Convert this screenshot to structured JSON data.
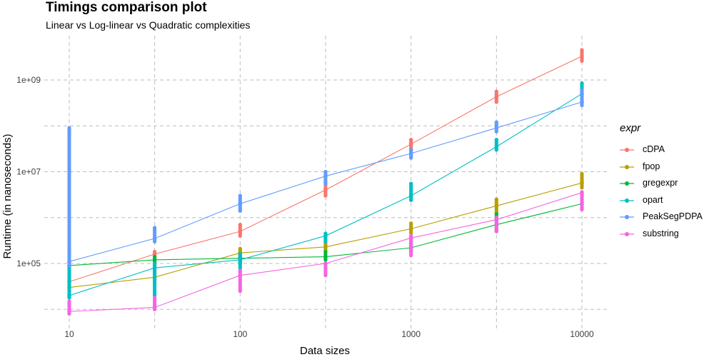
{
  "chart_data": {
    "type": "line",
    "title": "Timings comparison plot",
    "subtitle": "Linear vs Log-linear vs Quadratic complexities",
    "xlabel": "Data sizes",
    "ylabel": "Runtime (in nanoseconds)",
    "x_scale": "log10",
    "y_scale": "log10",
    "xlim": [
      10,
      10000
    ],
    "ylim": [
      6000,
      5000000000
    ],
    "x_ticks": [
      {
        "v": 10,
        "label": "10"
      },
      {
        "v": 100,
        "label": "100"
      },
      {
        "v": 1000,
        "label": "1000"
      },
      {
        "v": 10000,
        "label": "10000"
      }
    ],
    "y_ticks": [
      {
        "v": 100000,
        "label": "1e+05"
      },
      {
        "v": 10000000,
        "label": "1e+07"
      },
      {
        "v": 1000000000,
        "label": "1e+09"
      }
    ],
    "grid": true,
    "x": [
      10,
      31.6,
      100,
      316,
      1000,
      3162,
      10000
    ],
    "legend_title": "expr",
    "series": [
      {
        "name": "cDPA",
        "color": "#F8766D",
        "values": [
          40000,
          160000,
          500000,
          4000000,
          40000000,
          430000000,
          3300000000
        ],
        "spread": [
          [
            30000,
            70000
          ],
          [
            100000,
            180000
          ],
          [
            400000,
            700000
          ],
          [
            3000000,
            6000000
          ],
          [
            30000000,
            50000000
          ],
          [
            330000000,
            560000000
          ],
          [
            2600000000,
            4500000000
          ]
        ]
      },
      {
        "name": "fpop",
        "color": "#B79F00",
        "values": [
          30000,
          50000,
          170000,
          230000,
          570000,
          1800000,
          5700000
        ],
        "spread": [
          [
            25000,
            60000
          ],
          [
            40000,
            70000
          ],
          [
            140000,
            210000
          ],
          [
            180000,
            350000
          ],
          [
            460000,
            750000
          ],
          [
            1300000,
            2500000
          ],
          [
            4500000,
            9000000
          ]
        ]
      },
      {
        "name": "gregexpr",
        "color": "#00BA38",
        "values": [
          90000,
          120000,
          130000,
          140000,
          220000,
          700000,
          2000000
        ],
        "spread": [
          [
            70000,
            200000
          ],
          [
            80000,
            140000
          ],
          [
            100000,
            160000
          ],
          [
            120000,
            180000
          ],
          [
            180000,
            350000
          ],
          [
            500000,
            1200000
          ],
          [
            1600000,
            2600000
          ]
        ]
      },
      {
        "name": "opart",
        "color": "#00BFC4",
        "values": [
          20000,
          80000,
          120000,
          400000,
          3000000,
          35000000,
          500000000
        ],
        "spread": [
          [
            18000,
            140000
          ],
          [
            20000,
            100000
          ],
          [
            80000,
            160000
          ],
          [
            300000,
            450000
          ],
          [
            2400000,
            5500000
          ],
          [
            30000000,
            50000000
          ],
          [
            400000000,
            850000000
          ]
        ]
      },
      {
        "name": "PeakSegPDPA",
        "color": "#619CFF",
        "values": [
          110000,
          350000,
          2000000,
          8000000,
          25000000,
          90000000,
          330000000
        ],
        "spread": [
          [
            90000,
            90000000
          ],
          [
            300000,
            600000
          ],
          [
            1400000,
            3000000
          ],
          [
            5500000,
            10000000
          ],
          [
            20000000,
            30000000
          ],
          [
            75000000,
            120000000
          ],
          [
            280000000,
            600000000
          ]
        ]
      },
      {
        "name": "substring",
        "color": "#F564E3",
        "values": [
          9000,
          11000,
          55000,
          100000,
          360000,
          900000,
          3500000
        ],
        "spread": [
          [
            8000,
            15000
          ],
          [
            10000,
            18000
          ],
          [
            25000,
            70000
          ],
          [
            55000,
            100000
          ],
          [
            150000,
            400000
          ],
          [
            500000,
            1000000
          ],
          [
            1500000,
            3600000
          ]
        ]
      }
    ]
  }
}
